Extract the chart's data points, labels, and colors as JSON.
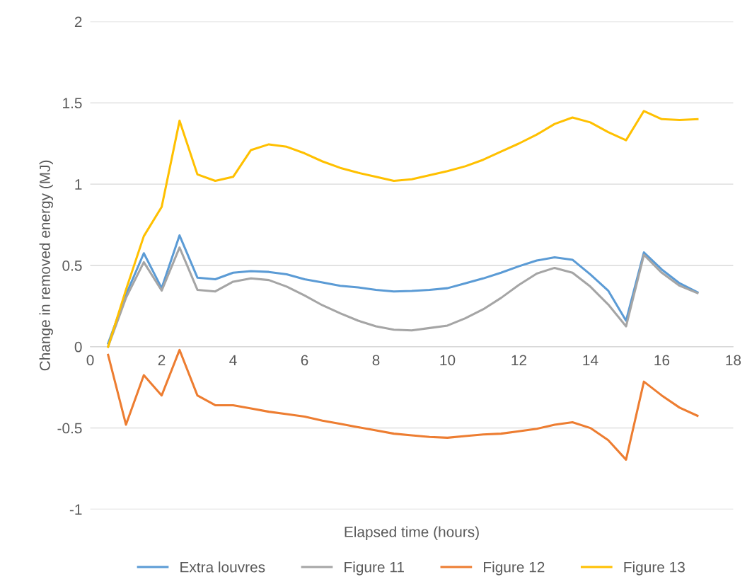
{
  "chart_data": {
    "type": "line",
    "xlabel": "Elapsed time (hours)",
    "ylabel": "Change in removed energy (MJ)",
    "x": [
      0.5,
      1,
      1.5,
      2,
      2.5,
      3,
      3.5,
      4,
      4.5,
      5,
      5.5,
      6,
      6.5,
      7,
      7.5,
      8,
      8.5,
      9,
      9.5,
      10,
      10.5,
      11,
      11.5,
      12,
      12.5,
      13,
      13.5,
      14,
      14.5,
      15,
      15.5,
      16,
      16.5,
      17
    ],
    "series": [
      {
        "name": "Extra louvres",
        "color": "#5b9bd5",
        "values": [
          0.02,
          0.32,
          0.575,
          0.36,
          0.685,
          0.425,
          0.415,
          0.455,
          0.465,
          0.46,
          0.445,
          0.415,
          0.395,
          0.375,
          0.365,
          0.35,
          0.34,
          0.343,
          0.35,
          0.36,
          0.39,
          0.42,
          0.455,
          0.495,
          0.53,
          0.55,
          0.535,
          0.445,
          0.345,
          0.16,
          0.58,
          0.475,
          0.39,
          0.335
        ]
      },
      {
        "name": "Figure 11",
        "color": "#a5a5a5",
        "values": [
          0.0,
          0.3,
          0.52,
          0.345,
          0.61,
          0.35,
          0.34,
          0.4,
          0.42,
          0.41,
          0.37,
          0.315,
          0.255,
          0.205,
          0.16,
          0.125,
          0.105,
          0.1,
          0.115,
          0.13,
          0.175,
          0.23,
          0.3,
          0.38,
          0.45,
          0.485,
          0.455,
          0.37,
          0.26,
          0.125,
          0.565,
          0.455,
          0.375,
          0.33
        ]
      },
      {
        "name": "Figure 12",
        "color": "#ed7d31",
        "values": [
          -0.05,
          -0.48,
          -0.175,
          -0.3,
          -0.02,
          -0.3,
          -0.36,
          -0.36,
          -0.38,
          -0.4,
          -0.415,
          -0.43,
          -0.455,
          -0.475,
          -0.495,
          -0.515,
          -0.535,
          -0.545,
          -0.555,
          -0.56,
          -0.55,
          -0.54,
          -0.535,
          -0.52,
          -0.505,
          -0.48,
          -0.465,
          -0.5,
          -0.575,
          -0.695,
          -0.215,
          -0.3,
          -0.375,
          -0.425
        ]
      },
      {
        "name": "Figure 13",
        "color": "#ffc000",
        "values": [
          0.0,
          0.35,
          0.68,
          0.86,
          1.39,
          1.06,
          1.02,
          1.045,
          1.21,
          1.245,
          1.23,
          1.19,
          1.14,
          1.1,
          1.07,
          1.045,
          1.02,
          1.03,
          1.055,
          1.08,
          1.11,
          1.15,
          1.2,
          1.25,
          1.305,
          1.37,
          1.41,
          1.38,
          1.32,
          1.27,
          1.45,
          1.4,
          1.395,
          1.4
        ]
      }
    ],
    "xlim": [
      0,
      18
    ],
    "xticks": [
      0,
      2,
      4,
      6,
      8,
      10,
      12,
      14,
      16,
      18
    ],
    "ylim": [
      -1,
      2
    ],
    "yticks": [
      -1,
      -0.5,
      0,
      0.5,
      1,
      1.5,
      2
    ],
    "grid": "y",
    "legend": "bottom",
    "marker": "none",
    "line_style": "solid"
  }
}
